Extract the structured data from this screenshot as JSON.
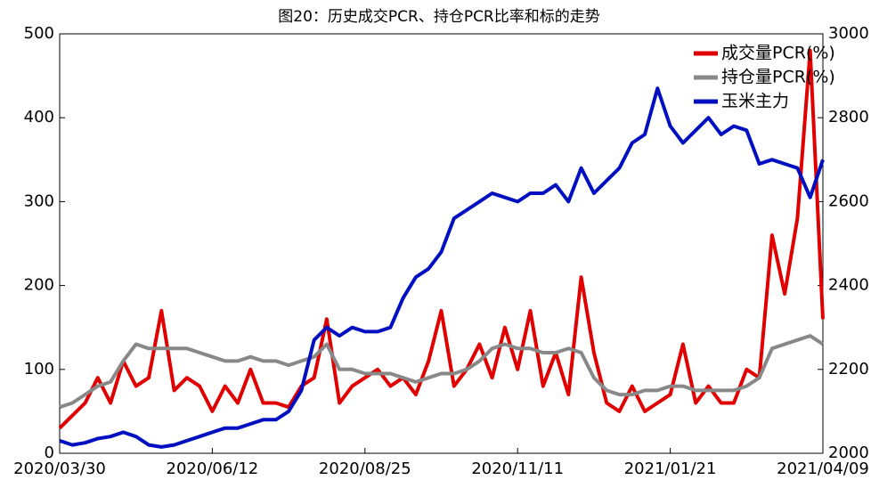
{
  "chart_data": {
    "type": "line",
    "title": "图20：历史成交PCR、持仓PCR比率和标的走势",
    "categories": [
      "2020/03/30",
      null,
      null,
      null,
      null,
      null,
      null,
      null,
      null,
      null,
      null,
      null,
      "2020/06/12",
      null,
      null,
      null,
      null,
      null,
      null,
      null,
      null,
      null,
      null,
      null,
      "2020/08/25",
      null,
      null,
      null,
      null,
      null,
      null,
      null,
      null,
      null,
      null,
      null,
      "2020/11/11",
      null,
      null,
      null,
      null,
      null,
      null,
      null,
      null,
      null,
      null,
      null,
      "2021/01/21",
      null,
      null,
      null,
      null,
      null,
      null,
      null,
      null,
      null,
      null,
      null,
      "2021/04/09"
    ],
    "series": [
      {
        "name": "成交量PCR(%)",
        "color": "#e00000",
        "values": [
          30,
          45,
          60,
          90,
          60,
          110,
          80,
          90,
          170,
          75,
          90,
          80,
          50,
          80,
          60,
          100,
          60,
          60,
          55,
          80,
          90,
          160,
          60,
          80,
          90,
          100,
          80,
          90,
          70,
          110,
          170,
          80,
          100,
          130,
          90,
          150,
          100,
          170,
          80,
          120,
          70,
          210,
          120,
          60,
          50,
          80,
          50,
          60,
          70,
          130,
          60,
          80,
          60,
          60,
          100,
          90,
          260,
          190,
          280,
          480,
          160
        ]
      },
      {
        "name": "持仓量PCR(%)",
        "color": "#888888",
        "values": [
          55,
          60,
          70,
          80,
          85,
          110,
          130,
          125,
          125,
          125,
          125,
          120,
          115,
          110,
          110,
          115,
          110,
          110,
          105,
          110,
          115,
          130,
          100,
          100,
          95,
          95,
          95,
          90,
          85,
          90,
          95,
          95,
          100,
          110,
          125,
          130,
          125,
          125,
          120,
          120,
          125,
          120,
          90,
          75,
          70,
          70,
          75,
          75,
          80,
          80,
          75,
          75,
          75,
          75,
          80,
          90,
          125,
          130,
          135,
          140,
          130
        ]
      },
      {
        "name": "玉米主力",
        "color": "#0010c0",
        "axis": "y2",
        "values": [
          2030,
          2020,
          2025,
          2035,
          2040,
          2050,
          2040,
          2020,
          2015,
          2020,
          2030,
          2040,
          2050,
          2060,
          2060,
          2070,
          2080,
          2080,
          2100,
          2150,
          2270,
          2300,
          2280,
          2300,
          2290,
          2290,
          2300,
          2370,
          2420,
          2440,
          2480,
          2560,
          2580,
          2600,
          2620,
          2610,
          2600,
          2620,
          2620,
          2640,
          2600,
          2680,
          2620,
          2650,
          2680,
          2740,
          2760,
          2870,
          2780,
          2740,
          2770,
          2800,
          2760,
          2780,
          2770,
          2690,
          2700,
          2690,
          2680,
          2610,
          2700
        ]
      }
    ],
    "ylim": [
      0,
      500
    ],
    "yticks": [
      0,
      100,
      200,
      300,
      400,
      500
    ],
    "y2lim": [
      2000,
      3000
    ],
    "y2ticks": [
      2000,
      2200,
      2400,
      2600,
      2800,
      3000
    ],
    "legend": "upper right"
  }
}
